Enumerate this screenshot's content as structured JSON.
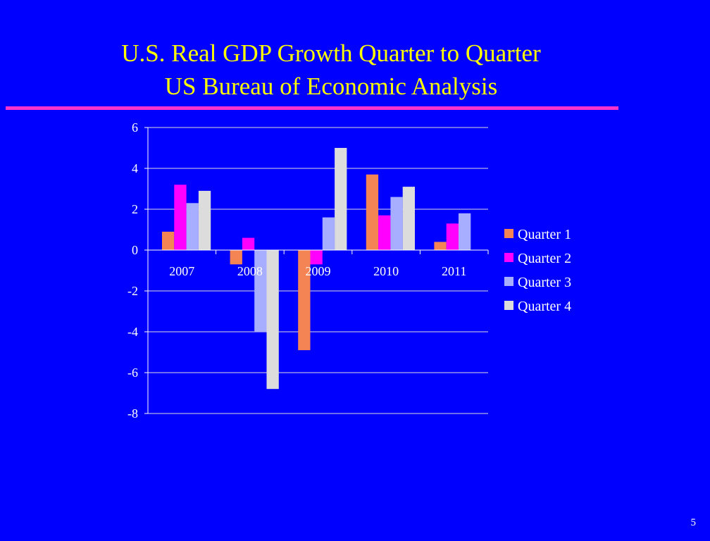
{
  "slide": {
    "title_line1": "U.S. Real GDP Growth Quarter to Quarter",
    "title_line2": "US Bureau of Economic  Analysis",
    "slide_number": "5",
    "background_color": "#0000FF",
    "title_color": "#FFFF00",
    "rule_color": "#FF33CC"
  },
  "chart_data": {
    "type": "bar",
    "categories": [
      "2007",
      "2008",
      "2009",
      "2010",
      "2011"
    ],
    "series": [
      {
        "name": "Quarter 1",
        "color": "#F58454",
        "values": [
          0.9,
          -0.7,
          -4.9,
          3.7,
          0.4
        ]
      },
      {
        "name": "Quarter 2",
        "color": "#FF00FF",
        "values": [
          3.2,
          0.6,
          -0.7,
          1.7,
          1.3
        ]
      },
      {
        "name": "Quarter 3",
        "color": "#A7AEFF",
        "values": [
          2.3,
          -4.0,
          1.6,
          2.6,
          1.8
        ]
      },
      {
        "name": "Quarter 4",
        "color": "#DCDCDC",
        "values": [
          2.9,
          -6.8,
          5.0,
          3.1,
          null
        ]
      }
    ],
    "ylim": [
      -8,
      6
    ],
    "yticks": [
      "6",
      "4",
      "2",
      "0",
      "-2",
      "-4",
      "-6",
      "-8"
    ],
    "ytick_values": [
      6,
      4,
      2,
      0,
      -2,
      -4,
      -6,
      -8
    ],
    "grid": true,
    "legend_position": "right",
    "axis_color": "#FFFFFF",
    "grid_color": "#DCDCDC"
  }
}
